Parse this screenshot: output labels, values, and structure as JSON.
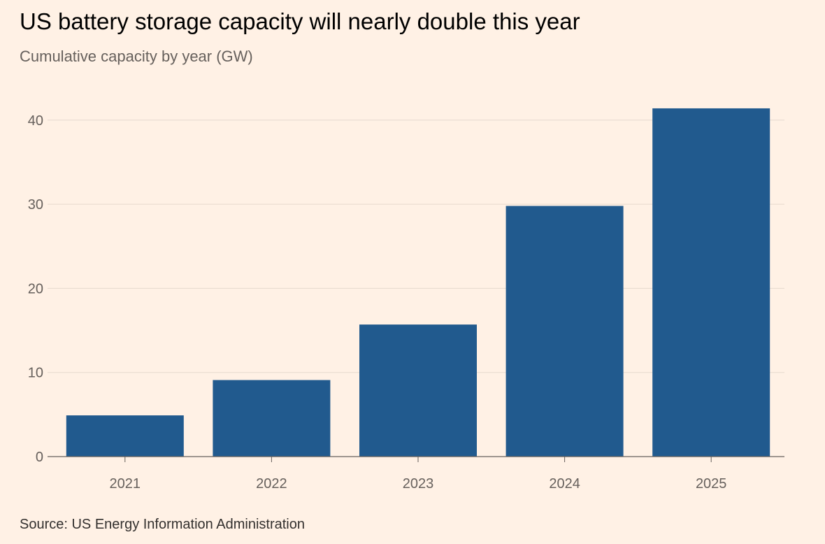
{
  "chart_data": {
    "type": "bar",
    "title": "US battery storage capacity will nearly double this year",
    "subtitle": "Cumulative capacity by year (GW)",
    "categories": [
      "2021",
      "2022",
      "2023",
      "2024",
      "2025"
    ],
    "values": [
      4.9,
      9.1,
      15.7,
      29.8,
      41.4
    ],
    "yticks": [
      0,
      10,
      20,
      30,
      40
    ],
    "ylim": [
      0,
      43
    ],
    "grid": true,
    "bar_color": "#215A8E",
    "source": "Source: US Energy Information Administration"
  }
}
